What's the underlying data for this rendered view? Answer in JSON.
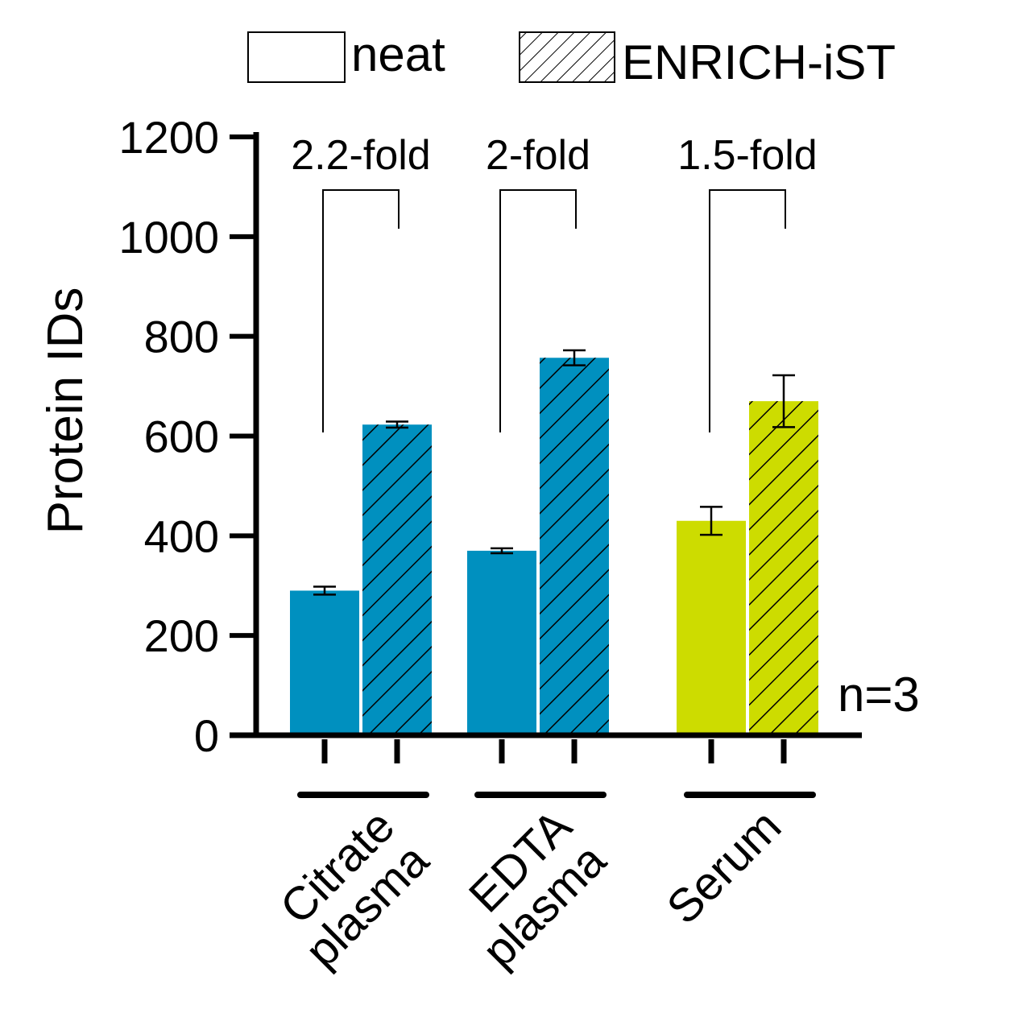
{
  "chart_data": {
    "type": "bar",
    "ylabel": "Protein IDs",
    "xlabel": "",
    "ylim": [
      0,
      1200
    ],
    "yticks": [
      0,
      200,
      400,
      600,
      800,
      1000,
      1200
    ],
    "yticks_text": [
      "0",
      "200",
      "400",
      "600",
      "800",
      "1000",
      "1200"
    ],
    "legend_position": "top",
    "categories": [
      {
        "lines": [
          "Citrate",
          "plasma"
        ],
        "color": "#0090bf"
      },
      {
        "lines": [
          "EDTA",
          "plasma"
        ],
        "color": "#0090bf"
      },
      {
        "lines": [
          "Serum"
        ],
        "color": "#cddc00"
      }
    ],
    "series": [
      {
        "name": "neat",
        "hatch": false,
        "values": [
          290,
          370,
          430
        ],
        "errors": [
          8,
          5,
          28
        ]
      },
      {
        "name": "ENRICH-iST",
        "hatch": true,
        "values": [
          623,
          757,
          670
        ],
        "errors": [
          6,
          15,
          52
        ]
      }
    ],
    "annotations": [
      "2.2-fold",
      "2-fold",
      "1.5-fold"
    ],
    "note": "n=3"
  }
}
